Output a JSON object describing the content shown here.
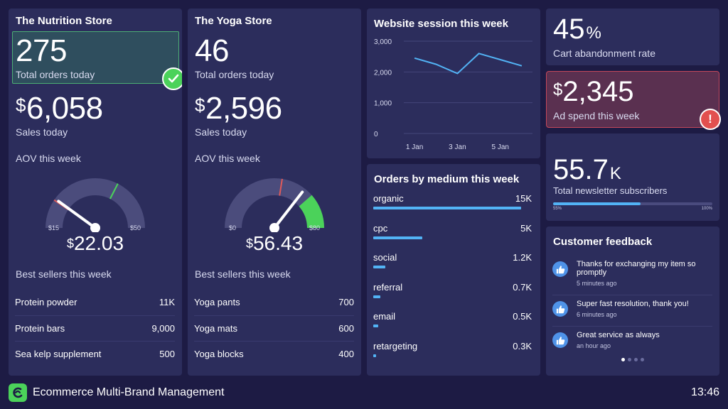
{
  "nutrition": {
    "title": "The Nutrition Store",
    "orders_value": "275",
    "orders_label": "Total orders today",
    "sales_currency": "$",
    "sales_value": "6,058",
    "sales_label": "Sales today",
    "aov_label": "AOV this week",
    "gauge_min": "$15",
    "gauge_max": "$50",
    "aov_currency": "$",
    "aov_value": "22.03",
    "aov_fraction": 0.2,
    "bestsellers_title": "Best sellers this week",
    "bestsellers": [
      {
        "name": "Protein powder",
        "value": "11K"
      },
      {
        "name": "Protein bars",
        "value": "9,000"
      },
      {
        "name": "Sea kelp supplement",
        "value": "500"
      }
    ]
  },
  "yoga": {
    "title": "The Yoga Store",
    "orders_value": "46",
    "orders_label": "Total orders today",
    "sales_currency": "$",
    "sales_value": "2,596",
    "sales_label": "Sales today",
    "aov_label": "AOV this week",
    "gauge_min": "$0",
    "gauge_max": "$80",
    "aov_currency": "$",
    "aov_value": "56.43",
    "aov_fraction": 0.71,
    "bestsellers_title": "Best sellers this week",
    "bestsellers": [
      {
        "name": "Yoga pants",
        "value": "700"
      },
      {
        "name": "Yoga mats",
        "value": "600"
      },
      {
        "name": "Yoga blocks",
        "value": "400"
      }
    ]
  },
  "sessions": {
    "title": "Website session this week",
    "y_ticks": [
      "3,000",
      "2,000",
      "1,000",
      "0"
    ],
    "x_ticks": [
      "1 Jan",
      "3 Jan",
      "5 Jan"
    ]
  },
  "orders_medium": {
    "title": "Orders by medium this week",
    "rows": [
      {
        "label": "organic",
        "value": "15K",
        "fraction": 1.0
      },
      {
        "label": "cpc",
        "value": "5K",
        "fraction": 0.33
      },
      {
        "label": "social",
        "value": "1.2K",
        "fraction": 0.08
      },
      {
        "label": "referral",
        "value": "0.7K",
        "fraction": 0.047
      },
      {
        "label": "email",
        "value": "0.5K",
        "fraction": 0.033
      },
      {
        "label": "retargeting",
        "value": "0.3K",
        "fraction": 0.02
      }
    ]
  },
  "cart": {
    "value": "45",
    "unit": "%",
    "label": "Cart abandonment rate"
  },
  "ad_spend": {
    "currency": "$",
    "value": "2,345",
    "label": "Ad spend this week"
  },
  "newsletter": {
    "value": "55.7",
    "unit": "K",
    "label": "Total newsletter subscribers",
    "progress_min": "55%",
    "progress_max": "100%",
    "progress_fraction": 0.55
  },
  "feedback": {
    "title": "Customer feedback",
    "items": [
      {
        "text": "Thanks for exchanging my item so promptly",
        "time": "5 minutes ago"
      },
      {
        "text": "Super fast resolution, thank you!",
        "time": "6 minutes ago"
      },
      {
        "text": "Great service as always",
        "time": "an hour ago"
      }
    ]
  },
  "footer": {
    "title": "Ecommerce Multi-Brand Management",
    "time": "13:46"
  },
  "colors": {
    "background": "#1d1b44",
    "card": "#2c2d5c",
    "accent_blue": "#52b3f5",
    "success_green": "#4bd25a",
    "alert_red": "#e2504f",
    "needle_red": "#e05a5a"
  },
  "chart_data": {
    "type": "line",
    "title": "Website session this week",
    "x": [
      "1 Jan",
      "2 Jan",
      "3 Jan",
      "4 Jan",
      "5 Jan",
      "6 Jan"
    ],
    "series": [
      {
        "values": [
          2450,
          2250,
          1950,
          2600,
          2400,
          2200
        ]
      }
    ],
    "ylim": [
      0,
      3000
    ],
    "y_ticks": [
      0,
      1000,
      2000,
      3000
    ],
    "grid": true
  }
}
